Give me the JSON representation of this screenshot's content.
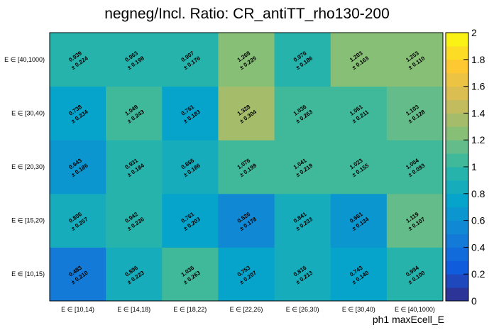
{
  "chart_data": {
    "type": "heatmap",
    "title": "negneg/Incl. Ratio: CR_antiTT_rho130-200",
    "xlabel": "ph1 maxEcell_E",
    "ylabel": "",
    "x_categories": [
      "E ∈ [10,14)",
      "E ∈ [14,18)",
      "E ∈ [18,22)",
      "E ∈ [22,26)",
      "E ∈ [26,30)",
      "E ∈ [30,40)",
      "E ∈ [40,1000)"
    ],
    "y_categories": [
      "E ∈ [10,15)",
      "E ∈ [15,20)",
      "E ∈ [20,30)",
      "E ∈ [30,40)",
      "E ∈ [40,1000)"
    ],
    "values": [
      [
        0.483,
        0.896,
        1.036,
        0.753,
        0.816,
        0.743,
        0.994
      ],
      [
        0.806,
        0.942,
        0.761,
        0.526,
        0.841,
        0.661,
        1.119
      ],
      [
        0.643,
        0.931,
        0.866,
        1.076,
        1.041,
        1.023,
        1.004
      ],
      [
        0.738,
        1.049,
        0.761,
        1.328,
        1.036,
        1.061,
        1.103
      ],
      [
        0.939,
        0.963,
        0.907,
        1.268,
        0.976,
        1.203,
        1.253
      ]
    ],
    "errors": [
      [
        0.21,
        0.223,
        0.263,
        0.207,
        0.213,
        0.14,
        0.1
      ],
      [
        0.257,
        0.236,
        0.203,
        0.178,
        0.233,
        0.134,
        0.107
      ],
      [
        0.186,
        0.184,
        0.186,
        0.199,
        0.219,
        0.155,
        0.093
      ],
      [
        0.234,
        0.243,
        0.183,
        0.304,
        0.263,
        0.211,
        0.128
      ],
      [
        0.224,
        0.198,
        0.176,
        0.225,
        0.186,
        0.163,
        0.11
      ]
    ],
    "value_format": "0.000",
    "error_prefix": "± ",
    "zlim": [
      0,
      2
    ],
    "z_ticks": [
      "0",
      "0.2",
      "0.4",
      "0.6",
      "0.8",
      "1",
      "1.2",
      "1.4",
      "1.6",
      "1.8",
      "2"
    ],
    "z_bands": 20,
    "colormap": [
      "#352a87",
      "#0f5cdd",
      "#1481d6",
      "#06a4ca",
      "#2eb7a4",
      "#87bf77",
      "#d1bb59",
      "#fec832",
      "#f9fb0e"
    ],
    "grid": false,
    "legend": "colorbar-right"
  }
}
